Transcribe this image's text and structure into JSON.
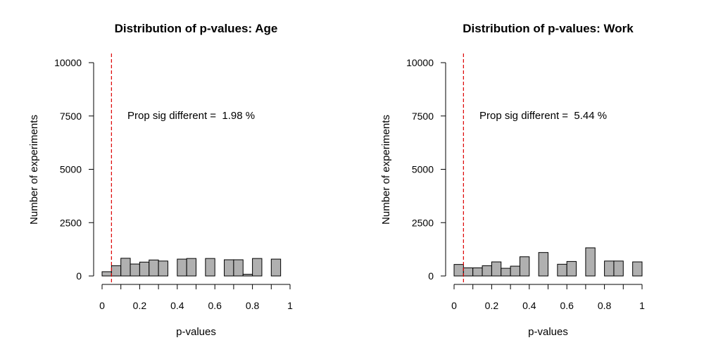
{
  "chart_data": [
    {
      "type": "bar",
      "title": "Distribution of p-values: Age",
      "xlabel": "p-values",
      "ylabel": "Number of experiments",
      "annotation_prefix": "Prop sig different =  ",
      "annotation_value": "1.98 %",
      "xlim": [
        0,
        1
      ],
      "ylim": [
        0,
        10000
      ],
      "xticks": [
        "0",
        "0.2",
        "0.4",
        "0.6",
        "0.8",
        "1"
      ],
      "yticks": [
        "0",
        "2500",
        "5000",
        "7500",
        "10000"
      ],
      "bin_width": 0.05,
      "bins": [
        0,
        0.05,
        0.1,
        0.15,
        0.2,
        0.25,
        0.3,
        0.4,
        0.45,
        0.55,
        0.65,
        0.7,
        0.75,
        0.8,
        0.9
      ],
      "values": [
        200,
        480,
        830,
        560,
        650,
        750,
        700,
        790,
        820,
        820,
        760,
        760,
        80,
        820,
        790
      ],
      "reference_line": 0.05,
      "reference_line_color": "#dd0000",
      "bar_color": "#b0b0b0"
    },
    {
      "type": "bar",
      "title": "Distribution of p-values: Work",
      "xlabel": "p-values",
      "ylabel": "Number of experiments",
      "annotation_prefix": "Prop sig different =  ",
      "annotation_value": "5.44 %",
      "xlim": [
        0,
        1
      ],
      "ylim": [
        0,
        10000
      ],
      "xticks": [
        "0",
        "0.2",
        "0.4",
        "0.6",
        "0.8",
        "1"
      ],
      "yticks": [
        "0",
        "2500",
        "5000",
        "7500",
        "10000"
      ],
      "bin_width": 0.05,
      "bins": [
        0,
        0.05,
        0.1,
        0.15,
        0.2,
        0.25,
        0.3,
        0.35,
        0.45,
        0.55,
        0.6,
        0.7,
        0.8,
        0.85,
        0.95
      ],
      "values": [
        540,
        380,
        380,
        480,
        660,
        360,
        460,
        900,
        1100,
        550,
        680,
        1320,
        700,
        700,
        660
      ],
      "reference_line": 0.05,
      "reference_line_color": "#dd0000",
      "bar_color": "#b0b0b0"
    }
  ]
}
